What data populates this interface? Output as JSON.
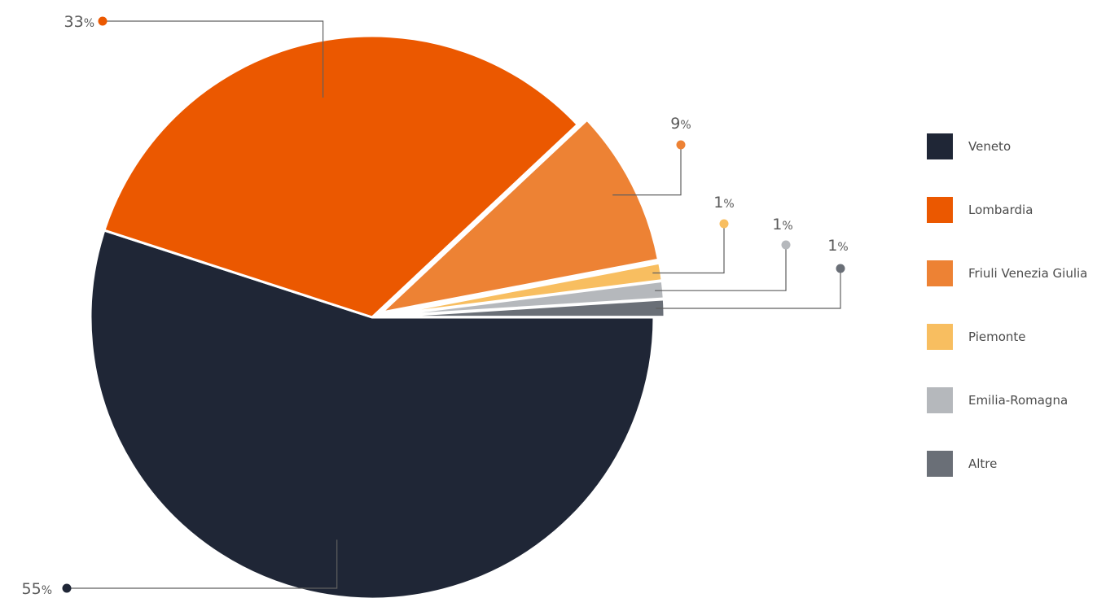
{
  "chart_data": {
    "type": "pie",
    "title": "",
    "categories": [
      "Veneto",
      "Lombardia",
      "Friuli Venezia Giulia",
      "Piemonte",
      "Emilia-Romagna",
      "Altre"
    ],
    "values": [
      55,
      33,
      9,
      1,
      1,
      1
    ],
    "colors": [
      "#1f2636",
      "#eb5800",
      "#ed8234",
      "#f8be60",
      "#b5b8bc",
      "#6a6f77"
    ],
    "labels": [
      "55",
      "33",
      "9",
      "1",
      "1",
      "1"
    ],
    "unit": "%",
    "legend_position": "right"
  }
}
